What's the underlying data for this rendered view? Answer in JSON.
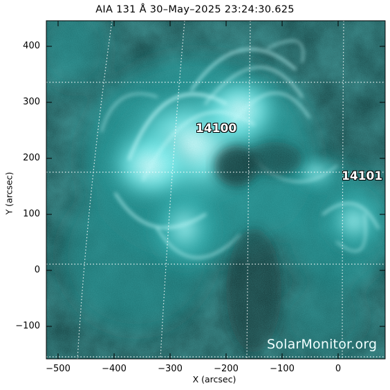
{
  "title": "AIA 131 Å 30–May–2025 23:24:30.625",
  "axes": {
    "xlabel": "X (arcsec)",
    "ylabel": "Y (arcsec)",
    "x_range": [
      -530,
      75
    ],
    "y_range": [
      -155,
      445
    ],
    "x_ticks": [
      "−500",
      "−400",
      "−300",
      "−200",
      "−100",
      "0"
    ],
    "y_ticks": [
      "400",
      "300",
      "200",
      "100",
      "0",
      "−100"
    ]
  },
  "regions": [
    {
      "label": "14100"
    },
    {
      "label": "14101"
    }
  ],
  "watermark": "SolarMonitor.org",
  "colors": {
    "background": "#0f3030",
    "bright": "#c8ffff",
    "mid": "#1fa7a7",
    "grid": "#ffffff"
  }
}
